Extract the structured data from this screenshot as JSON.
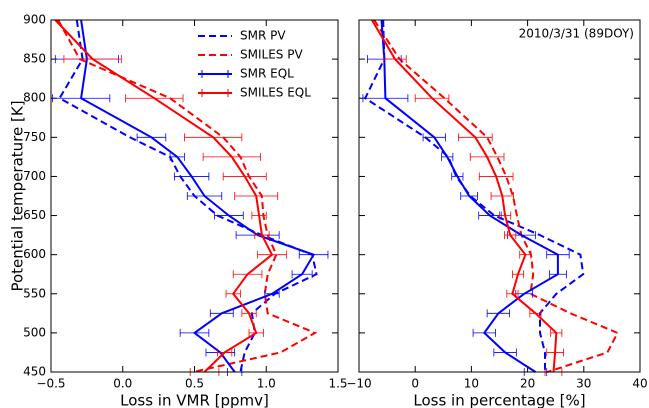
{
  "chart_data": [
    {
      "type": "line",
      "xlabel": "Loss in VMR [ppmv]",
      "ylabel": "Potential temperature [K]",
      "xlim": [
        -0.5,
        1.5
      ],
      "xticks": [
        {
          "value": -0.5,
          "label": "−0.5"
        },
        {
          "value": 0,
          "label": "0.0"
        },
        0.5,
        {
          "value": 1,
          "label": "1.0"
        },
        1.5
      ],
      "ylim": [
        450,
        900
      ],
      "yticks": [
        450,
        500,
        550,
        600,
        650,
        700,
        750,
        800,
        850,
        900
      ],
      "legend": "upper right",
      "y": [
        900,
        850,
        800,
        750,
        725,
        700,
        675,
        650,
        625,
        600,
        575,
        550,
        525,
        500,
        475,
        450
      ],
      "series": [
        {
          "name": "SMR PV",
          "color": "#0000ff",
          "style": "dashed",
          "values": [
            -0.32,
            -0.28,
            -0.44,
            0.05,
            0.33,
            0.4,
            0.5,
            0.66,
            0.97,
            1.32,
            1.35,
            1.06,
            0.9,
            0.92,
            0.85,
            0.82
          ]
        },
        {
          "name": "SMILES PV",
          "color": "#ff0000",
          "style": "dashed",
          "values": [
            -0.45,
            -0.3,
            0.33,
            0.7,
            0.82,
            0.88,
            0.97,
            0.98,
            1.01,
            1.07,
            1.01,
            0.99,
            1.01,
            1.34,
            1.1,
            0.49
          ]
        },
        {
          "name": "SMR EQL",
          "color": "#0000ff",
          "style": "solid",
          "values": [
            -0.29,
            -0.25,
            -0.29,
            0.2,
            0.38,
            0.48,
            0.57,
            0.74,
            0.94,
            1.33,
            1.25,
            1.04,
            0.69,
            0.5,
            0.68,
            0.78
          ],
          "errors": [
            null,
            0.22,
            0.2,
            0.1,
            0.05,
            0.12,
            0.12,
            0.1,
            0.15,
            0.1,
            0.07,
            0.05,
            0.08,
            0.1,
            0.1,
            0.05
          ]
        },
        {
          "name": "SMILES EQL",
          "color": "#ff0000",
          "style": "solid",
          "values": [
            -0.47,
            -0.21,
            0.22,
            0.63,
            0.76,
            0.85,
            0.93,
            0.95,
            0.97,
            1.04,
            0.87,
            0.77,
            0.88,
            0.93,
            0.71,
            0.57
          ],
          "errors": [
            null,
            0.2,
            0.2,
            0.2,
            0.2,
            0.15,
            0.15,
            0.05,
            0.05,
            0.1,
            0.1,
            0.05,
            0.05,
            0.05,
            0.05,
            0.1
          ]
        }
      ]
    },
    {
      "type": "line",
      "xlabel": "Loss in percentage [%]",
      "annotation": "2010/3/31 (89DOY)",
      "xlim": [
        -10,
        40
      ],
      "xticks": [
        {
          "value": -10,
          "label": "−10"
        },
        0,
        10,
        20,
        30,
        40
      ],
      "ylim": [
        450,
        900
      ],
      "y": [
        900,
        850,
        800,
        750,
        725,
        700,
        675,
        650,
        625,
        600,
        575,
        550,
        525,
        500,
        475,
        450
      ],
      "series": [
        {
          "color": "#0000ff",
          "style": "dashed",
          "values": [
            -5.7,
            -5.5,
            -8.9,
            1.8,
            5.9,
            7.3,
            9.8,
            14.1,
            22.2,
            29.4,
            29.9,
            25.1,
            22.2,
            22.2,
            23.1,
            23.1
          ]
        },
        {
          "color": "#ff0000",
          "style": "dashed",
          "values": [
            -7.3,
            -2.8,
            5.2,
            12.8,
            14.6,
            16.2,
            17.4,
            18.1,
            18.9,
            20.6,
            21,
            20.5,
            27.6,
            36,
            34.2,
            23.5
          ]
        },
        {
          "color": "#0000ff",
          "style": "solid",
          "values": [
            -6,
            -5.5,
            -5.3,
            3.4,
            5.7,
            7.5,
            9.6,
            13.3,
            18.9,
            25.4,
            25.4,
            19.4,
            14.8,
            12.3,
            16,
            21.4
          ],
          "errors": [
            null,
            3,
            4,
            2,
            1,
            1,
            1.5,
            2,
            2.5,
            2,
            1.5,
            1.5,
            2,
            2,
            2,
            2
          ]
        },
        {
          "color": "#ff0000",
          "style": "solid",
          "values": [
            -7.7,
            -3.6,
            3,
            10.7,
            12.8,
            14.4,
            15.5,
            16,
            16.9,
            19.6,
            18.3,
            17.3,
            21.4,
            25.1,
            24.9,
            24.6
          ],
          "errors": [
            null,
            2,
            3,
            3,
            3,
            3,
            2,
            1,
            1,
            1,
            1,
            1,
            1,
            1,
            1.5,
            1.5
          ]
        }
      ]
    }
  ]
}
